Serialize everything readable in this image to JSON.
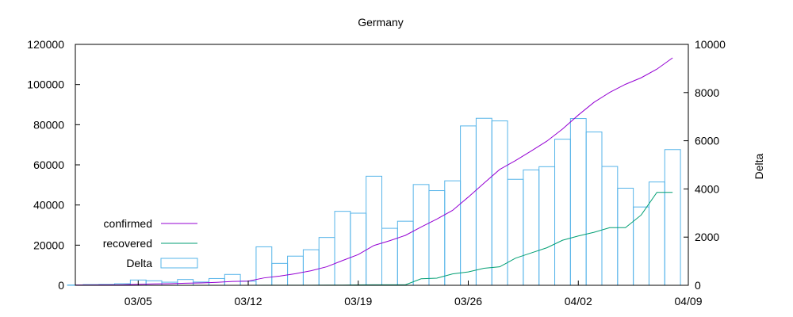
{
  "chart_data": {
    "type": "bar",
    "title": "Germany",
    "y2label": "Delta",
    "ylim": [
      0,
      120000
    ],
    "y2lim": [
      0,
      10000
    ],
    "yticks": [
      "0",
      "20000",
      "40000",
      "60000",
      "80000",
      "100000",
      "120000"
    ],
    "y2ticks": [
      "0",
      "2000",
      "4000",
      "6000",
      "8000",
      "10000"
    ],
    "xticks": [
      "03/05",
      "03/12",
      "03/19",
      "03/26",
      "04/02",
      "04/09"
    ],
    "xrange": [
      "2020-03-01",
      "2020-04-09"
    ],
    "grid": false,
    "legend_position": "bottom-left",
    "dates": [
      "03/01",
      "03/02",
      "03/03",
      "03/04",
      "03/05",
      "03/06",
      "03/07",
      "03/08",
      "03/09",
      "03/10",
      "03/11",
      "03/12",
      "03/13",
      "03/14",
      "03/15",
      "03/16",
      "03/17",
      "03/18",
      "03/19",
      "03/20",
      "03/21",
      "03/22",
      "03/23",
      "03/24",
      "03/25",
      "03/26",
      "03/27",
      "03/28",
      "03/29",
      "03/30",
      "03/31",
      "04/01",
      "04/02",
      "04/03",
      "04/04",
      "04/05",
      "04/06",
      "04/07",
      "04/08"
    ],
    "series": [
      {
        "name": "confirmed",
        "kind": "line",
        "axis": "y",
        "color": "#9400d3",
        "values": [
          130,
          159,
          196,
          262,
          482,
          670,
          799,
          1040,
          1176,
          1457,
          1908,
          2078,
          3675,
          4585,
          5795,
          7272,
          9257,
          12327,
          15320,
          19848,
          22213,
          24873,
          29056,
          32986,
          37323,
          43938,
          50871,
          57695,
          62095,
          66885,
          71808,
          77872,
          84794,
          91159,
          96092,
          100123,
          103374,
          107663,
          113296
        ]
      },
      {
        "name": "recovered",
        "kind": "line",
        "axis": "y",
        "color": "#009e73",
        "values": [
          16,
          16,
          16,
          16,
          16,
          17,
          18,
          18,
          18,
          18,
          25,
          25,
          46,
          46,
          46,
          67,
          105,
          113,
          180,
          233,
          266,
          266,
          3243,
          3547,
          5673,
          6658,
          8481,
          9211,
          13500,
          16100,
          18700,
          22440,
          24575,
          26400,
          28700,
          28700,
          35000,
          46300,
          46300
        ]
      },
      {
        "name": "Delta",
        "kind": "bar",
        "axis": "y2",
        "color": "#56b4e9",
        "values": [
          13,
          29,
          37,
          66,
          220,
          188,
          129,
          241,
          136,
          281,
          451,
          170,
          1597,
          910,
          1210,
          1477,
          1985,
          3070,
          2993,
          4528,
          2365,
          2660,
          4183,
          3930,
          4337,
          6615,
          6933,
          6824,
          4400,
          4790,
          4923,
          6064,
          6922,
          6365,
          4933,
          4031,
          3251,
          4289,
          5633
        ]
      }
    ]
  }
}
